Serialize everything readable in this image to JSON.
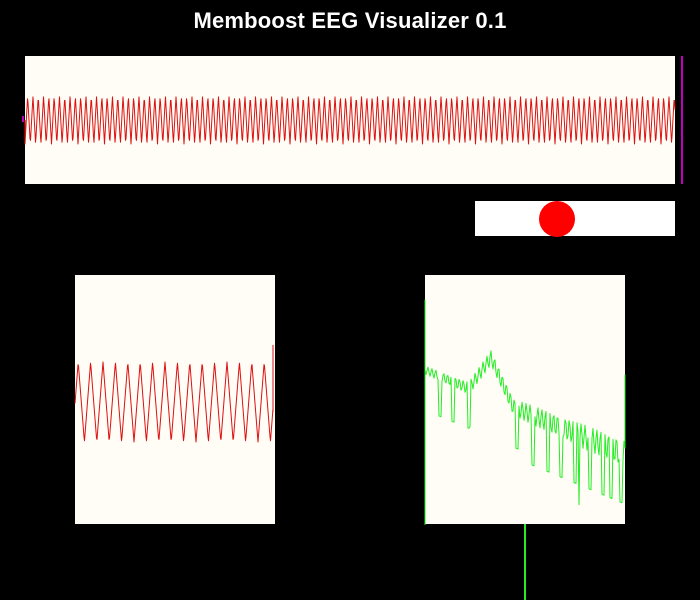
{
  "app": {
    "title": "Memboost EEG Visualizer 0.1"
  },
  "colors": {
    "background": "#000000",
    "panel": "#fffdf6",
    "eeg_trace": "#dd1111",
    "spectrum_trace": "#22ee22",
    "indicator_dot": "#ff0000",
    "indicator_bar": "#ffffff",
    "cursor_line": "#c000c0",
    "marker_line": "#22ee22"
  },
  "indicator": {
    "level": 0.41
  }
}
